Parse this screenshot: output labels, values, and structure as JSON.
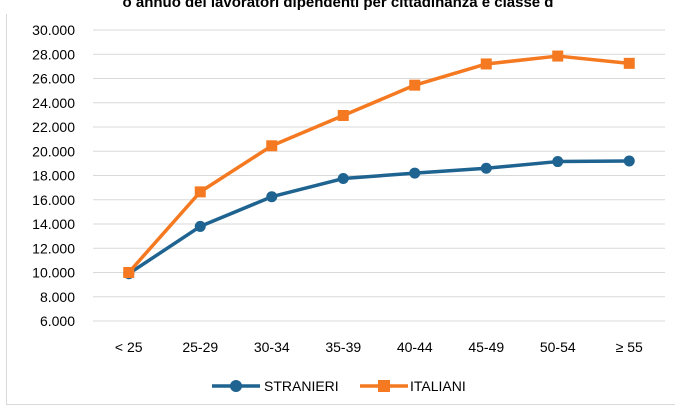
{
  "chart_data": {
    "type": "line",
    "title": "o annuo dei lavoratori dipendenti per cittadinanza e classe d",
    "categories": [
      "< 25",
      "25-29",
      "30-34",
      "35-39",
      "40-44",
      "45-49",
      "50-54",
      "≥ 55"
    ],
    "ylim": [
      6000,
      30000
    ],
    "yticks": [
      "6.000",
      "8.000",
      "10.000",
      "12.000",
      "14.000",
      "16.000",
      "18.000",
      "20.000",
      "22.000",
      "24.000",
      "26.000",
      "28.000",
      "30.000"
    ],
    "grid": true,
    "legend_position": "bottom",
    "series": [
      {
        "name": "STRANIERI",
        "color": "#1f6391",
        "marker": "circle",
        "values": [
          9900,
          13800,
          16250,
          17750,
          18200,
          18600,
          19150,
          19200
        ]
      },
      {
        "name": "ITALIANI",
        "color": "#f47920",
        "marker": "square",
        "values": [
          10000,
          16650,
          20450,
          22950,
          25450,
          27200,
          27850,
          27250
        ]
      }
    ]
  }
}
